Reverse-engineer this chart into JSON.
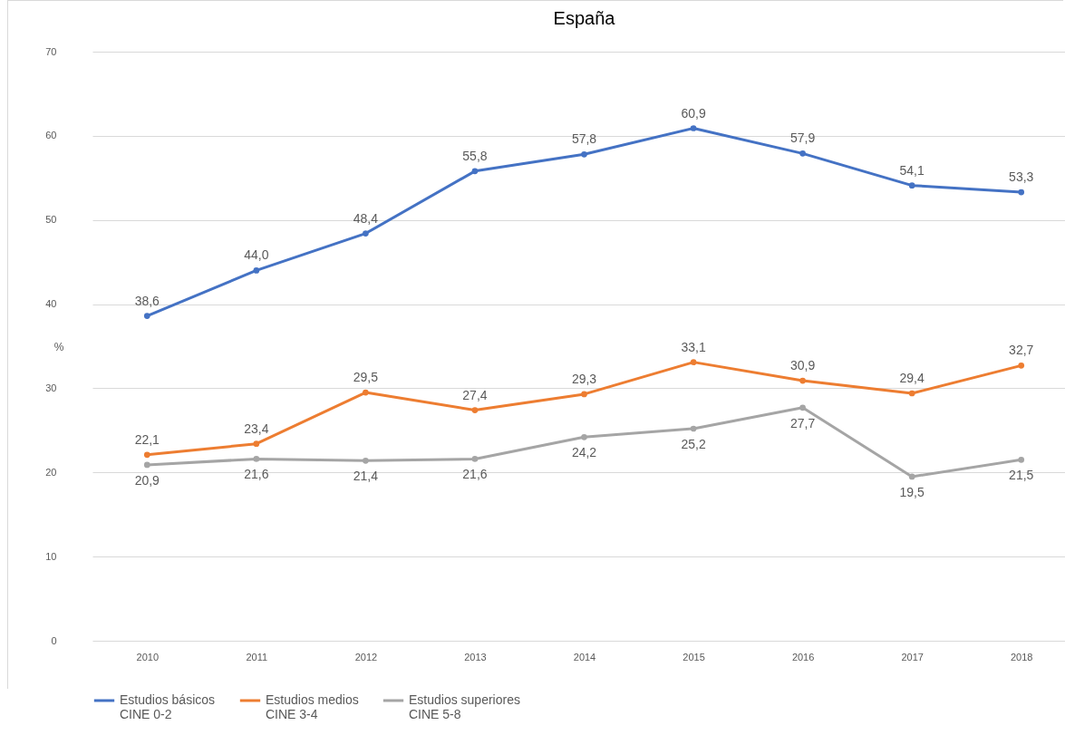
{
  "chart_data": {
    "type": "line",
    "title": "España",
    "ylabel": "%",
    "categories": [
      "2010",
      "2011",
      "2012",
      "2013",
      "2014",
      "2015",
      "2016",
      "2017",
      "2018"
    ],
    "series": [
      {
        "name": "Estudios básicos\nCINE 0-2",
        "color": "#4472c4",
        "values": [
          38.6,
          44.0,
          48.4,
          55.8,
          57.8,
          60.9,
          57.9,
          54.1,
          53.3
        ],
        "value_labels": [
          "38,6",
          "44,0",
          "48,4",
          "55,8",
          "57,8",
          "60,9",
          "57,9",
          "54,1",
          "53,3"
        ]
      },
      {
        "name": "Estudios medios\nCINE 3-4",
        "color": "#ed7d31",
        "values": [
          22.1,
          23.4,
          29.5,
          27.4,
          29.3,
          33.1,
          30.9,
          29.4,
          32.7
        ],
        "value_labels": [
          "22,1",
          "23,4",
          "29,5",
          "27,4",
          "29,3",
          "33,1",
          "30,9",
          "29,4",
          "32,7"
        ]
      },
      {
        "name": "Estudios superiores\nCINE 5-8",
        "color": "#a5a5a5",
        "values": [
          20.9,
          21.6,
          21.4,
          21.6,
          24.2,
          25.2,
          27.7,
          19.5,
          21.5
        ],
        "value_labels": [
          "20,9",
          "21,6",
          "21,4",
          "21,6",
          "24,2",
          "25,2",
          "27,7",
          "19,5",
          "21,5"
        ]
      }
    ],
    "ylim": [
      0,
      70
    ],
    "yticks": [
      0,
      10,
      20,
      30,
      40,
      50,
      60,
      70
    ],
    "grid": "y",
    "legend": "bottom",
    "marker": "circle",
    "line_style": "solid"
  }
}
